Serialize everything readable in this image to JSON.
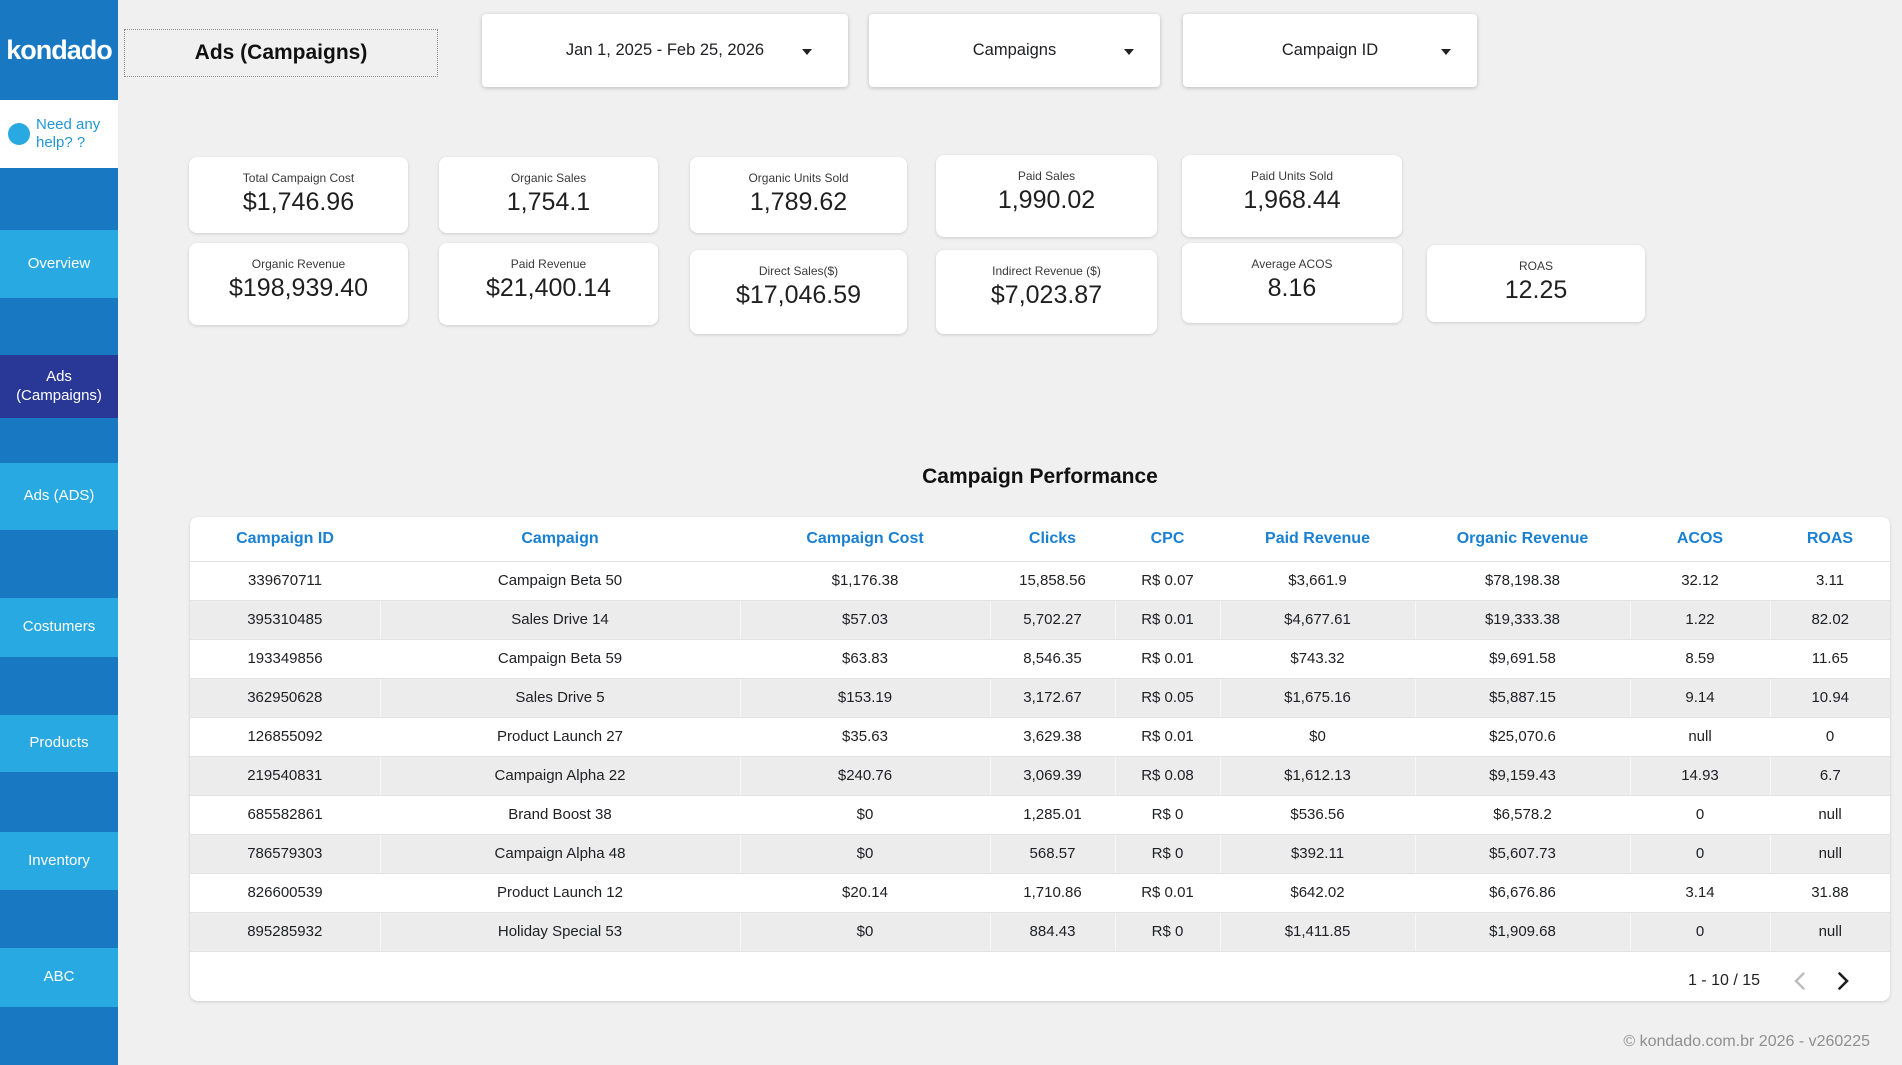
{
  "brand": {
    "logo": "kondado",
    "help_line1": "Need any",
    "help_line2": "help? ?"
  },
  "page_title": "Ads (Campaigns)",
  "filters": {
    "date_range": "Jan 1, 2025 - Feb 25, 2026",
    "dimension": "Campaigns",
    "breakdown": "Campaign ID"
  },
  "sidebar": {
    "items": [
      {
        "label": "Overview",
        "active": false
      },
      {
        "label": "Ads (Campaigns)",
        "active": true
      },
      {
        "label": "Ads (ADS)",
        "active": false
      },
      {
        "label": "Costumers",
        "active": false
      },
      {
        "label": "Products",
        "active": false
      },
      {
        "label": "Inventory",
        "active": false
      },
      {
        "label": "ABC",
        "active": false
      }
    ]
  },
  "kpis": [
    {
      "label": "Total Campaign Cost",
      "value": "$1,746.96"
    },
    {
      "label": "Organic Sales",
      "value": "1,754.1"
    },
    {
      "label": "Organic Units Sold",
      "value": "1,789.62"
    },
    {
      "label": "Paid Sales",
      "value": "1,990.02"
    },
    {
      "label": "Paid Units Sold",
      "value": "1,968.44"
    },
    {
      "label": "Organic Revenue",
      "value": "$198,939.40"
    },
    {
      "label": "Paid Revenue",
      "value": "$21,400.14"
    },
    {
      "label": "Direct Sales($)",
      "value": "$17,046.59"
    },
    {
      "label": "Indirect Revenue ($)",
      "value": "$7,023.87"
    },
    {
      "label": "Average ACOS",
      "value": "8.16"
    },
    {
      "label": "ROAS",
      "value": "12.25"
    }
  ],
  "table": {
    "title": "Campaign Performance",
    "columns": [
      "Campaign ID",
      "Campaign",
      "Campaign Cost",
      "Clicks",
      "CPC",
      "Paid Revenue",
      "Organic Revenue",
      "ACOS",
      "ROAS"
    ],
    "rows": [
      [
        "339670711",
        "Campaign Beta 50",
        "$1,176.38",
        "15,858.56",
        "R$ 0.07",
        "$3,661.9",
        "$78,198.38",
        "32.12",
        "3.11"
      ],
      [
        "395310485",
        "Sales Drive 14",
        "$57.03",
        "5,702.27",
        "R$ 0.01",
        "$4,677.61",
        "$19,333.38",
        "1.22",
        "82.02"
      ],
      [
        "193349856",
        "Campaign Beta 59",
        "$63.83",
        "8,546.35",
        "R$ 0.01",
        "$743.32",
        "$9,691.58",
        "8.59",
        "11.65"
      ],
      [
        "362950628",
        "Sales Drive 5",
        "$153.19",
        "3,172.67",
        "R$ 0.05",
        "$1,675.16",
        "$5,887.15",
        "9.14",
        "10.94"
      ],
      [
        "126855092",
        "Product Launch 27",
        "$35.63",
        "3,629.38",
        "R$ 0.01",
        "$0",
        "$25,070.6",
        "null",
        "0"
      ],
      [
        "219540831",
        "Campaign Alpha 22",
        "$240.76",
        "3,069.39",
        "R$ 0.08",
        "$1,612.13",
        "$9,159.43",
        "14.93",
        "6.7"
      ],
      [
        "685582861",
        "Brand Boost 38",
        "$0",
        "1,285.01",
        "R$ 0",
        "$536.56",
        "$6,578.2",
        "0",
        "null"
      ],
      [
        "786579303",
        "Campaign Alpha 48",
        "$0",
        "568.57",
        "R$ 0",
        "$392.11",
        "$5,607.73",
        "0",
        "null"
      ],
      [
        "826600539",
        "Product Launch 12",
        "$20.14",
        "1,710.86",
        "R$ 0.01",
        "$642.02",
        "$6,676.86",
        "3.14",
        "31.88"
      ],
      [
        "895285932",
        "Holiday Special 53",
        "$0",
        "884.43",
        "R$ 0",
        "$1,411.85",
        "$1,909.68",
        "0",
        "null"
      ]
    ],
    "pagination": "1 - 10 / 15"
  },
  "footer": "© kondado.com.br 2026 - v260225",
  "colors": {
    "sidebar_blue": "#1878c2",
    "nav_item_blue": "#29a9e1",
    "nav_active_navy": "#293896",
    "table_header_blue": "#1a80d2",
    "page_background": "#f0f0f0"
  }
}
